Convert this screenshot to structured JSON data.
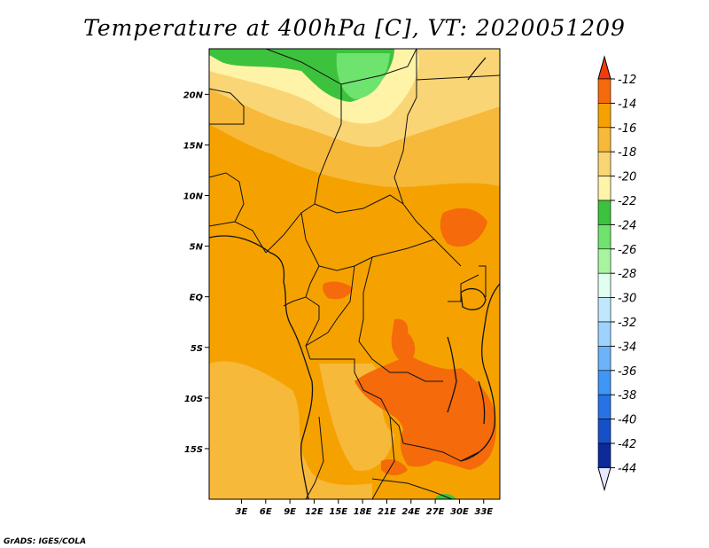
{
  "title": "Temperature at 400hPa [C], VT: 2020051209",
  "credit": "GrADS: IGES/COLA",
  "map": {
    "lon_range": [
      -1,
      35
    ],
    "lat_range": [
      -20,
      24.5
    ],
    "lon_ticks": [
      {
        "value": 3,
        "label": "3E"
      },
      {
        "value": 6,
        "label": "6E"
      },
      {
        "value": 9,
        "label": "9E"
      },
      {
        "value": 12,
        "label": "12E"
      },
      {
        "value": 15,
        "label": "15E"
      },
      {
        "value": 18,
        "label": "18E"
      },
      {
        "value": 21,
        "label": "21E"
      },
      {
        "value": 24,
        "label": "24E"
      },
      {
        "value": 27,
        "label": "27E"
      },
      {
        "value": 30,
        "label": "30E"
      },
      {
        "value": 33,
        "label": "33E"
      }
    ],
    "lat_ticks": [
      {
        "value": 20,
        "label": "20N"
      },
      {
        "value": 15,
        "label": "15N"
      },
      {
        "value": 10,
        "label": "10N"
      },
      {
        "value": 5,
        "label": "5N"
      },
      {
        "value": 0,
        "label": "EQ"
      },
      {
        "value": -5,
        "label": "5S"
      },
      {
        "value": -10,
        "label": "10S"
      },
      {
        "value": -15,
        "label": "15S"
      }
    ],
    "background_color": "#f5a200"
  },
  "colorbar": {
    "labels": [
      "-12",
      "-14",
      "-16",
      "-18",
      "-20",
      "-22",
      "-24",
      "-26",
      "-28",
      "-30",
      "-32",
      "-34",
      "-36",
      "-38",
      "-40",
      "-42",
      "-44"
    ],
    "colors": [
      "#f03c0a",
      "#f56a0a",
      "#f5a200",
      "#f7b93a",
      "#fad575",
      "#fff3a8",
      "#3dc23d",
      "#6ee36e",
      "#a8f5a0",
      "#e0fff0",
      "#bfe8ff",
      "#9ed3ff",
      "#6bb4fa",
      "#4096f5",
      "#2673e8",
      "#1650c8",
      "#0c2a9a",
      "#060e70",
      "#e8e8ff"
    ]
  }
}
